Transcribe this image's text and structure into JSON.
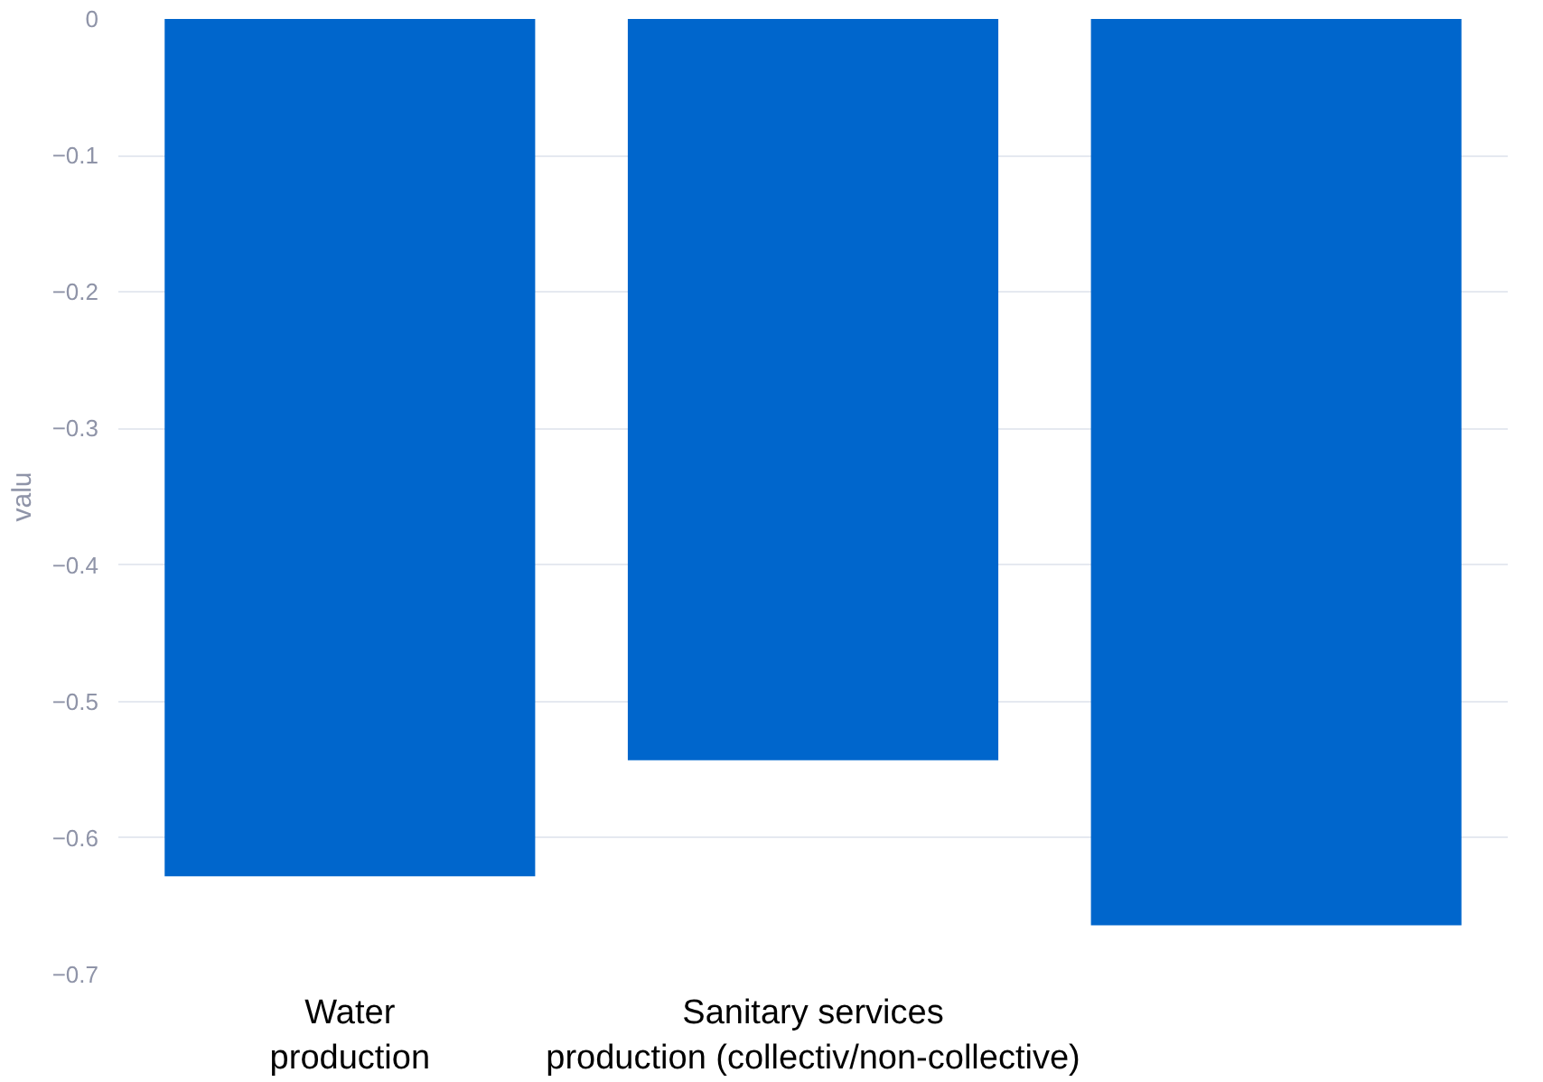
{
  "chart_data": {
    "type": "bar",
    "ylabel": "valu",
    "categories": [
      "Water\nproduction",
      "Sanitary services\nproduction (collectiv/non-collective)",
      null
    ],
    "values": [
      -0.628,
      -0.543,
      -0.664
    ],
    "color": "#0066cc",
    "ylim": [
      -0.7,
      0
    ],
    "yticks": [
      {
        "value": 0,
        "label": "0"
      },
      {
        "value": -0.1,
        "label": "−0.1"
      },
      {
        "value": -0.2,
        "label": "−0.2"
      },
      {
        "value": -0.3,
        "label": "−0.3"
      },
      {
        "value": -0.4,
        "label": "−0.4"
      },
      {
        "value": -0.5,
        "label": "−0.5"
      },
      {
        "value": -0.6,
        "label": "−0.6"
      },
      {
        "value": -0.7,
        "label": "−0.7"
      }
    ],
    "grid": "y"
  }
}
